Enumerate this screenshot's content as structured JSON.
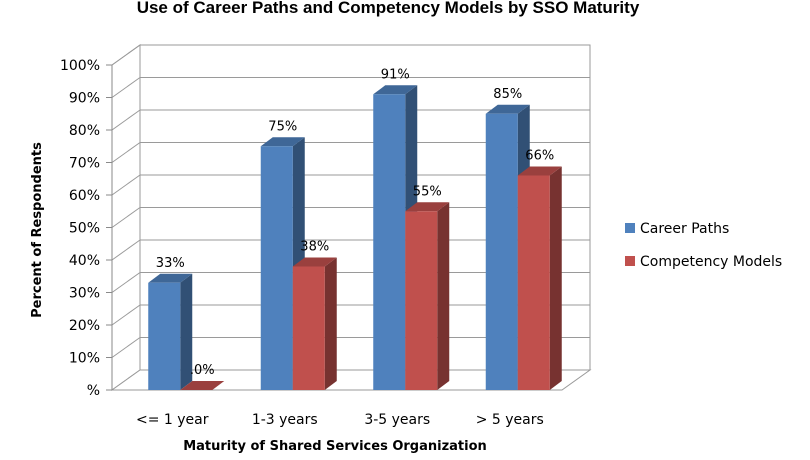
{
  "chart_data": {
    "type": "bar",
    "title": "Use of Career Paths and Competency Models by SSO Maturity",
    "xlabel": "Maturity of Shared Services Organization",
    "ylabel": "Percent of Respondents",
    "categories": [
      "<= 1 year",
      "1-3 years",
      "3-5 years",
      "> 5 years"
    ],
    "series": [
      {
        "name": "Career Paths",
        "values": [
          33,
          75,
          91,
          85
        ],
        "labels": [
          "33%",
          "75%",
          "91%",
          "85%"
        ],
        "color": "#4f81bd"
      },
      {
        "name": "Competency Models",
        "values": [
          0,
          38,
          55,
          66
        ],
        "labels": [
          ".0%",
          "38%",
          "55%",
          "66%"
        ],
        "color": "#c0504d"
      }
    ],
    "ylim": [
      0,
      100
    ],
    "yticks": [
      0,
      10,
      20,
      30,
      40,
      50,
      60,
      70,
      80,
      90,
      100
    ],
    "ytick_labels": [
      "%",
      "10%",
      "20%",
      "30%",
      "40%",
      "50%",
      "60%",
      "70%",
      "80%",
      "90%",
      "100%"
    ],
    "grid": true,
    "legend_position": "right",
    "style": "3d-clustered-column"
  }
}
